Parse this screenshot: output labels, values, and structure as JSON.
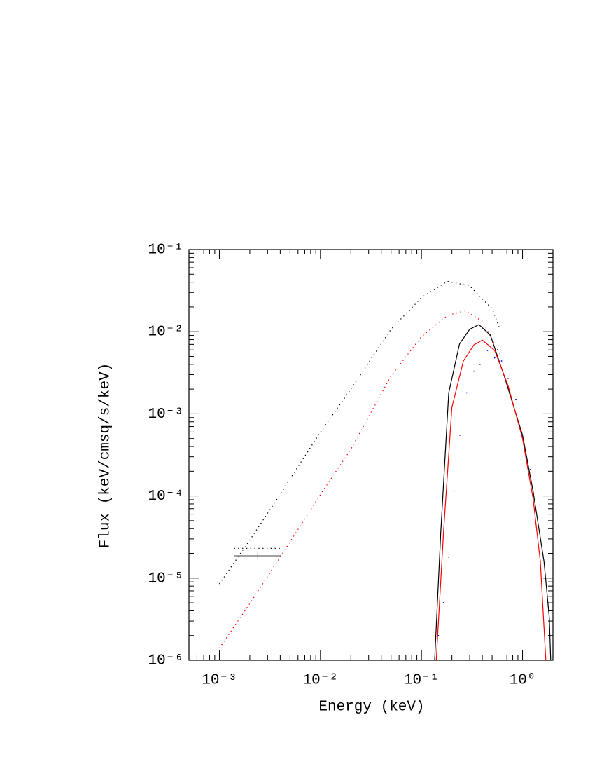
{
  "chart_data": {
    "type": "line",
    "xlabel": "Energy (keV)",
    "ylabel": "Flux (keV/cmsq/s/keV)",
    "xscale": "log",
    "yscale": "log",
    "xlim": [
      0.0005,
      2
    ],
    "ylim": [
      1e-06,
      0.1
    ],
    "xticks": [
      {
        "value": 0.001,
        "label": "10⁻³"
      },
      {
        "value": 0.01,
        "label": "10⁻²"
      },
      {
        "value": 0.1,
        "label": "10⁻¹"
      },
      {
        "value": 1,
        "label": "10⁰"
      }
    ],
    "yticks": [
      {
        "value": 1e-06,
        "label": "10⁻⁶"
      },
      {
        "value": 1e-05,
        "label": "10⁻⁵"
      },
      {
        "value": 0.0001,
        "label": "10⁻⁴"
      },
      {
        "value": 0.001,
        "label": "10⁻³"
      },
      {
        "value": 0.01,
        "label": "10⁻²"
      },
      {
        "value": 0.1,
        "label": "10⁻¹"
      }
    ],
    "xminor": [
      0.0006,
      0.0007,
      0.0008,
      0.0009,
      0.002,
      0.003,
      0.004,
      0.005,
      0.006,
      0.007,
      0.008,
      0.009,
      0.02,
      0.03,
      0.04,
      0.05,
      0.06,
      0.07,
      0.08,
      0.09,
      0.2,
      0.3,
      0.4,
      0.5,
      0.6,
      0.7,
      0.8,
      0.9,
      2
    ],
    "yminor": [
      2e-06,
      3e-06,
      4e-06,
      5e-06,
      6e-06,
      7e-06,
      8e-06,
      9e-06,
      2e-05,
      3e-05,
      4e-05,
      5e-05,
      6e-05,
      7e-05,
      8e-05,
      9e-05,
      0.0002,
      0.0003,
      0.0004,
      0.0005,
      0.0006,
      0.0007,
      0.0008,
      0.0009,
      0.002,
      0.003,
      0.004,
      0.005,
      0.006,
      0.007,
      0.008,
      0.009,
      0.02,
      0.03,
      0.04,
      0.05,
      0.06,
      0.07,
      0.08,
      0.09
    ],
    "series": [
      {
        "style": "dotted",
        "color": "#000000",
        "x": [
          0.001,
          0.002,
          0.004,
          0.01,
          0.02,
          0.05,
          0.1,
          0.18,
          0.3,
          0.5,
          0.6
        ],
        "values": [
          8.5e-06,
          2.9e-05,
          0.000105,
          0.0006,
          0.002,
          0.0107,
          0.026,
          0.041,
          0.036,
          0.019,
          0.0106
        ]
      },
      {
        "style": "dotted",
        "color": "#ff0000",
        "x": [
          0.001,
          0.002,
          0.004,
          0.01,
          0.02,
          0.05,
          0.1,
          0.18,
          0.27,
          0.4,
          0.6
        ],
        "values": [
          1.4e-06,
          4.9e-06,
          1.8e-05,
          0.000104,
          0.00037,
          0.0029,
          0.0087,
          0.0157,
          0.018,
          0.0134,
          0.0053
        ]
      },
      {
        "style": "solid",
        "color": "#000000",
        "x": [
          0.135,
          0.155,
          0.186,
          0.238,
          0.3,
          0.37,
          0.48,
          0.67,
          1.0,
          1.27,
          1.63,
          1.84,
          1.9
        ],
        "values": [
          1e-06,
          3.5e-05,
          0.0018,
          0.0071,
          0.0107,
          0.0122,
          0.0091,
          0.0027,
          0.00055,
          0.000115,
          1.6e-05,
          3.3e-06,
          1e-06
        ]
      },
      {
        "style": "solid",
        "color": "#ff0000",
        "x": [
          0.14,
          0.165,
          0.2,
          0.26,
          0.33,
          0.4,
          0.53,
          0.72,
          1.0,
          1.27,
          1.5,
          1.7
        ],
        "values": [
          1e-06,
          3.5e-05,
          0.0012,
          0.0044,
          0.0069,
          0.0079,
          0.0059,
          0.0022,
          0.0005,
          9.4e-05,
          1.6e-05,
          1e-06
        ]
      },
      {
        "style": "dots",
        "color": "#0000ff",
        "x": [
          0.147,
          0.165,
          0.186,
          0.21,
          0.24,
          0.28,
          0.33,
          0.38,
          0.45,
          0.53,
          0.62,
          0.72,
          0.86,
          1.0,
          1.2,
          1.27
        ],
        "values": [
          2e-06,
          5e-06,
          1.8e-05,
          0.000115,
          0.00055,
          0.0018,
          0.0033,
          0.004,
          0.0059,
          0.0048,
          0.0044,
          0.0027,
          0.0015,
          0.00055,
          0.00021,
          0.000115
        ]
      },
      {
        "style": "dotted",
        "color": "#000000",
        "x": [
          0.0014,
          0.0041
        ],
        "values": [
          2.3e-05,
          2.3e-05
        ]
      },
      {
        "style": "errorbar",
        "color": "#444444",
        "x": [
          0.0024
        ],
        "values": [
          1.87e-05
        ],
        "x_low": [
          0.0014
        ],
        "x_high": [
          0.0041
        ],
        "y_low": [
          1.72e-05
        ],
        "y_high": [
          2.05e-05
        ]
      }
    ]
  }
}
